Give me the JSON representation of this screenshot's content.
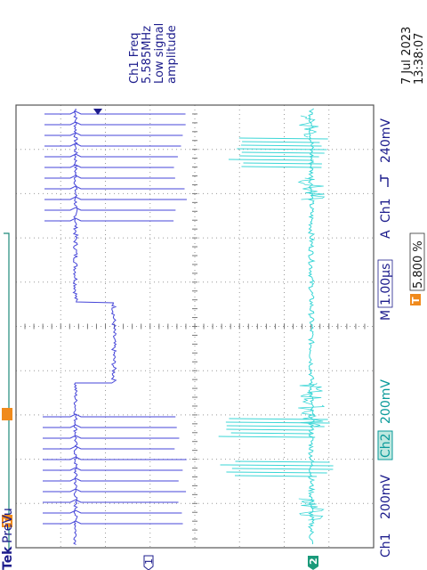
{
  "header": {
    "brand": "Tek",
    "mode": "PreVu"
  },
  "measurement": {
    "title": "Ch1 Freq",
    "value": "5.585MHz",
    "note_line1": "Low signal",
    "note_line2": "amplitude"
  },
  "timestamp": {
    "date": "7 Jul  2023",
    "time": "13:38:07"
  },
  "status_bar": {
    "ch1_label": "Ch1",
    "ch1_scale": "200mV",
    "ch2_label": "Ch2",
    "ch2_scale": "200mV",
    "timebase_label": "M",
    "timebase": "1.00µs",
    "trigger_label": "A",
    "trigger_source": "Ch1",
    "trigger_level": "240mV"
  },
  "trigger_position": {
    "marker": "T",
    "value": "5.800 %"
  },
  "channel_markers": [
    "1",
    "2"
  ],
  "cursor_markers": [
    "T"
  ]
}
